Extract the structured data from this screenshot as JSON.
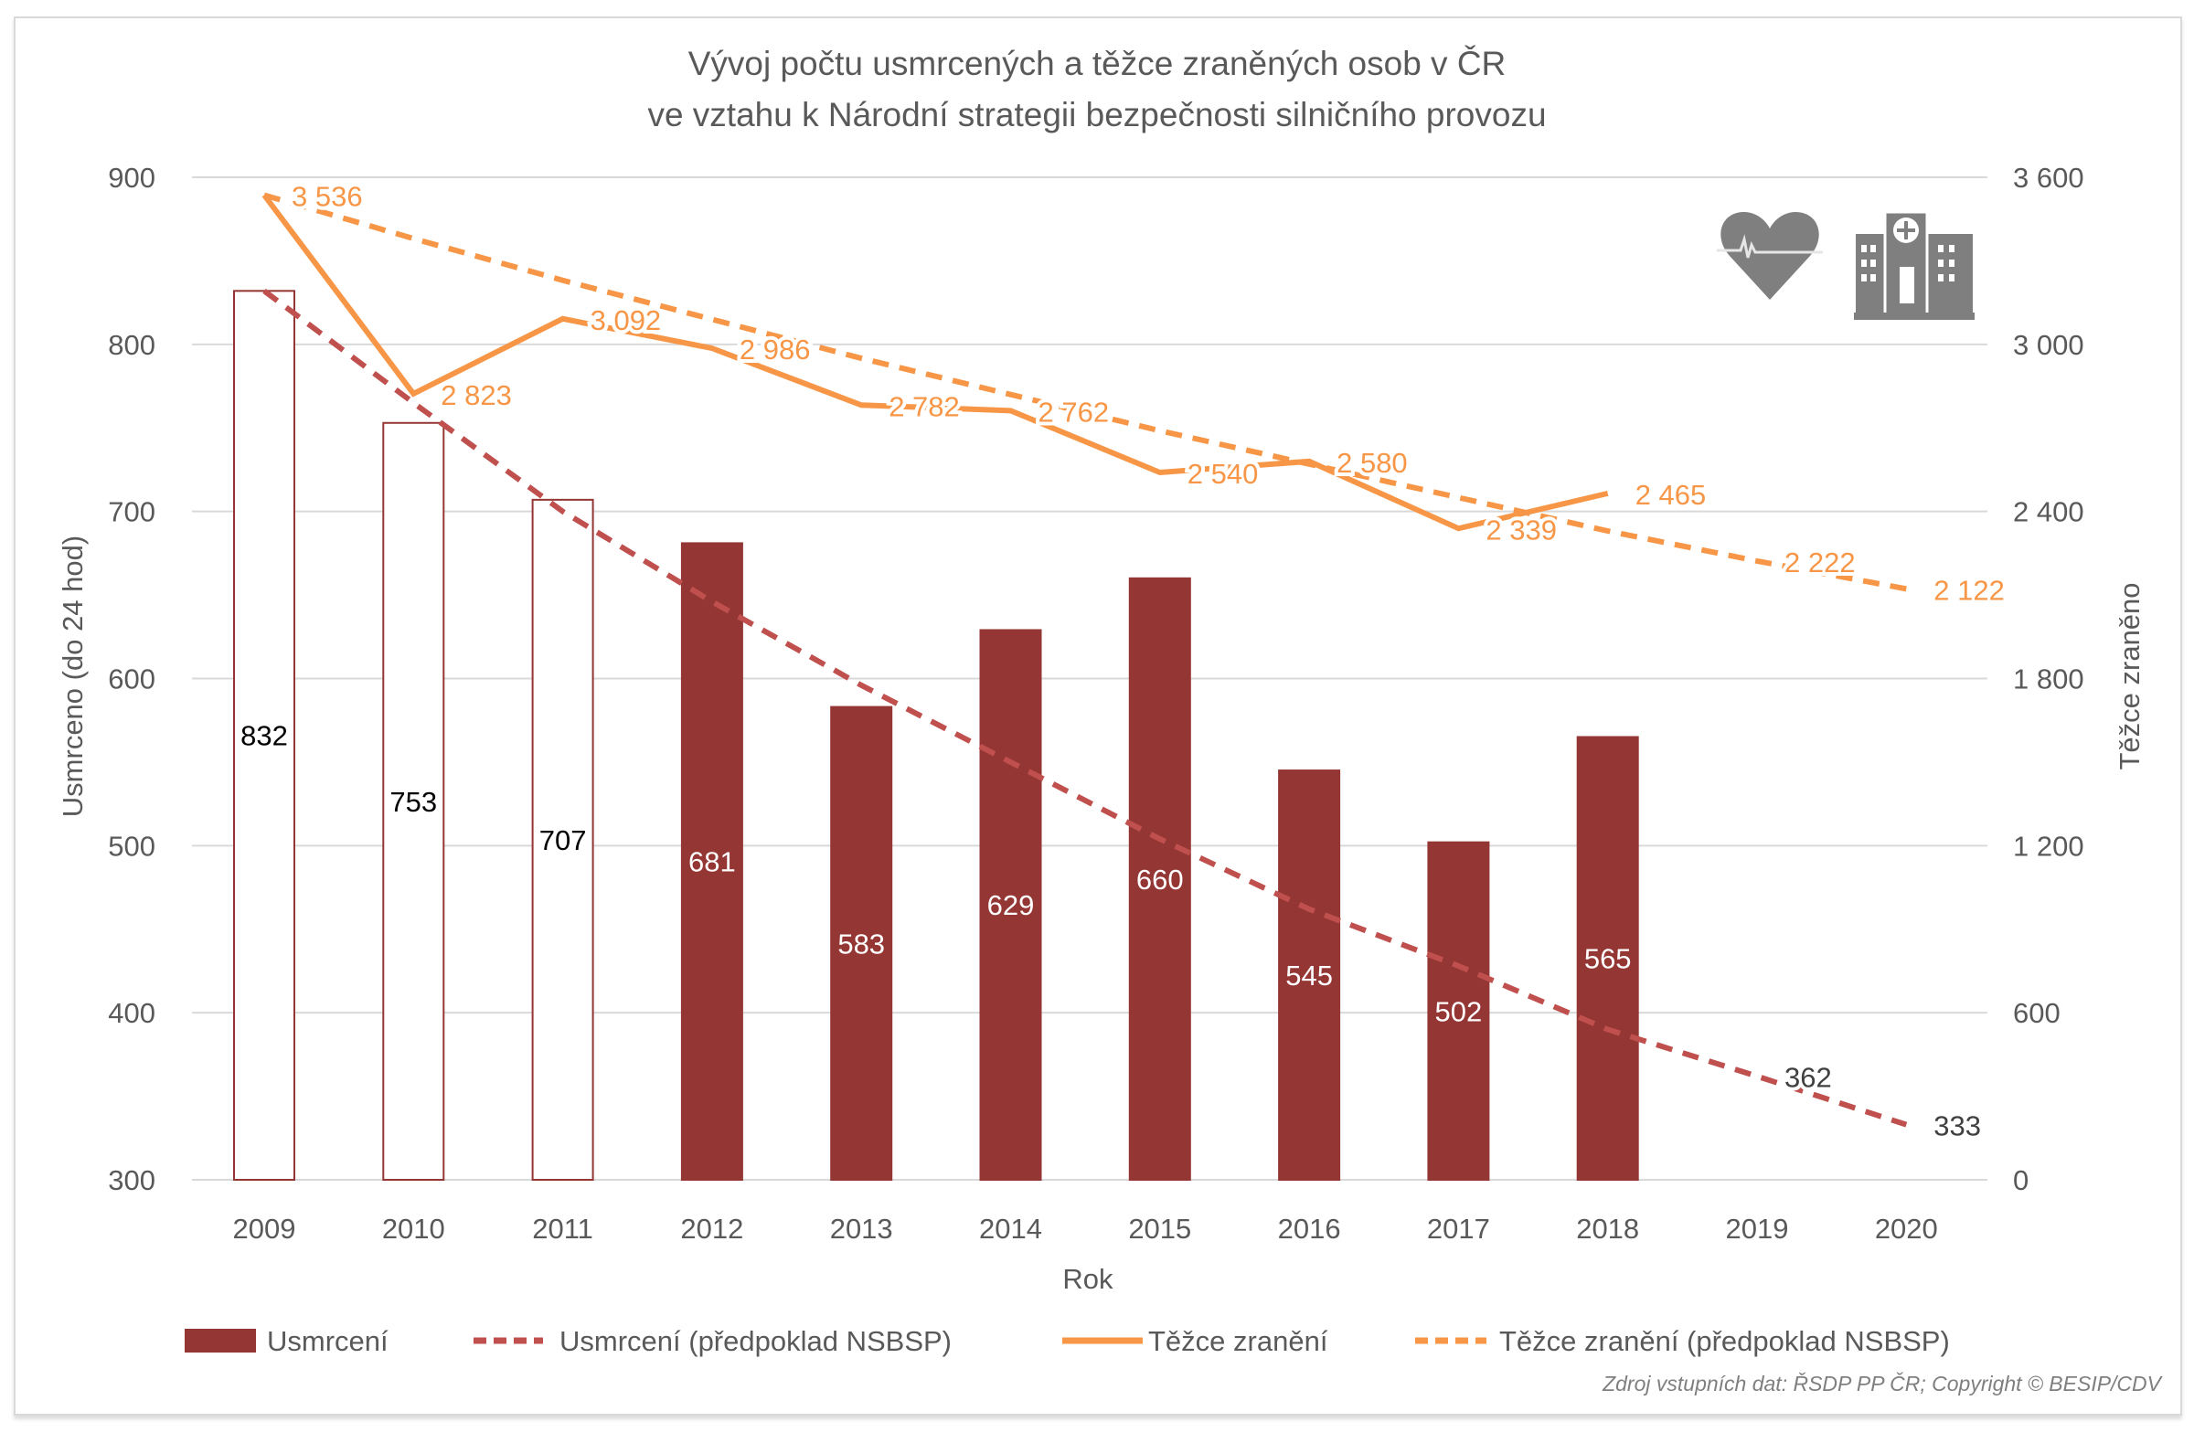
{
  "chart_data": {
    "type": "bar",
    "title": [
      "Vývoj počtu usmrcených a těžce zraněných osob v ČR",
      "ve vztahu k Národní strategii bezpečnosti silničního provozu"
    ],
    "xlabel": "Rok",
    "ylabel_left": "Usmrceno (do 24 hod)",
    "ylabel_right": "Těžce zraněno",
    "ylim_left": [
      300,
      900
    ],
    "ylim_right": [
      0,
      3600
    ],
    "yticks_left": [
      "900",
      "800",
      "700",
      "600",
      "500",
      "400",
      "300"
    ],
    "yticks_right": [
      "3 600",
      "3 000",
      "2 400",
      "1 800",
      "1 200",
      "600",
      "0"
    ],
    "grid": true,
    "legend_position": "bottom",
    "categories": [
      "2009",
      "2010",
      "2011",
      "2012",
      "2013",
      "2014",
      "2015",
      "2016",
      "2017",
      "2018",
      "2019",
      "2020"
    ],
    "series": [
      {
        "name": "Usmrcení",
        "type": "bar",
        "axis": "left",
        "color": "#943634",
        "values": [
          832,
          753,
          707,
          681,
          583,
          629,
          660,
          545,
          502,
          565,
          null,
          null
        ],
        "outlined": [
          true,
          true,
          true,
          false,
          false,
          false,
          false,
          false,
          false,
          false,
          false,
          false
        ],
        "labels": [
          "832",
          "753",
          "707",
          "681",
          "583",
          "629",
          "660",
          "545",
          "502",
          "565",
          "",
          ""
        ]
      },
      {
        "name": "Usmrcení (předpoklad NSBSP)",
        "type": "line",
        "style": "dashed",
        "axis": "left",
        "color": "#c0504d",
        "values": [
          832,
          765,
          700,
          646,
          596,
          550,
          504,
          462,
          428,
          390,
          362,
          333
        ],
        "labels": [
          "",
          "",
          "",
          "",
          "",
          "",
          "",
          "",
          "",
          "",
          "362",
          "333"
        ]
      },
      {
        "name": "Těžce zranění",
        "type": "line",
        "style": "solid",
        "axis": "right",
        "color": "#f79646",
        "values": [
          3536,
          2823,
          3092,
          2986,
          2782,
          2762,
          2540,
          2580,
          2339,
          2465,
          null,
          null
        ],
        "labels": [
          "3 536",
          "2 823",
          "3 092",
          "2 986",
          "2 782",
          "2 762",
          "2 540",
          "2 580",
          "2 339",
          "2 465",
          "",
          ""
        ]
      },
      {
        "name": "Těžce zranění (předpoklad NSBSP)",
        "type": "line",
        "style": "dashed",
        "axis": "right",
        "color": "#f79646",
        "values": [
          3536,
          3380,
          3230,
          3090,
          2950,
          2820,
          2690,
          2570,
          2450,
          2330,
          2222,
          2122
        ],
        "labels": [
          "",
          "",
          "",
          "",
          "",
          "",
          "",
          "",
          "",
          "",
          "2 222",
          "2 122"
        ]
      }
    ],
    "icons": [
      "heart-pulse-icon",
      "hospital-icon"
    ],
    "source": "Zdroj vstupních dat: ŘSDP PP ČR; Copyright © BESIP/CDV"
  }
}
